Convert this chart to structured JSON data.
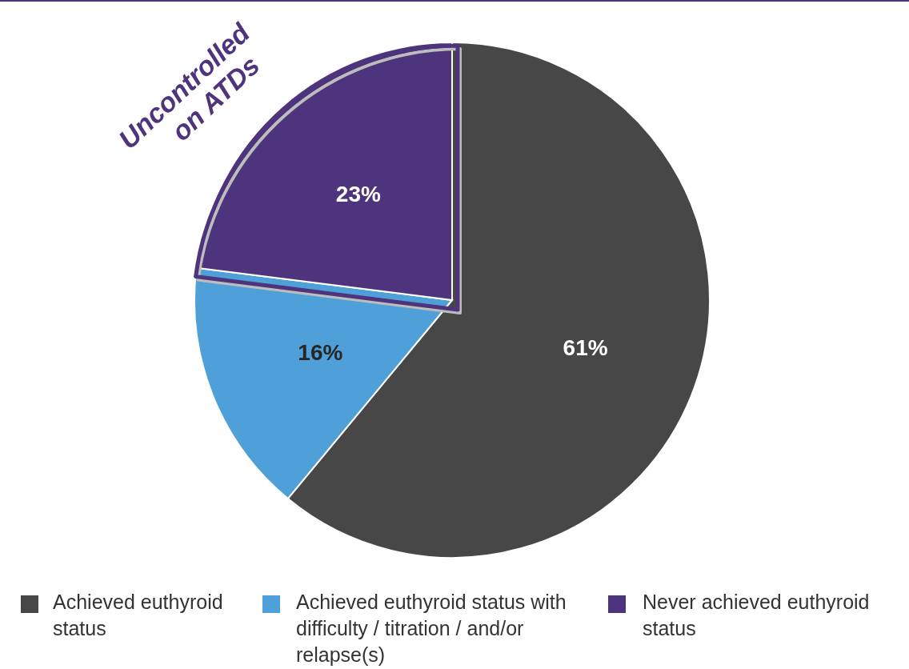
{
  "chart_data": {
    "type": "pie",
    "categories": [
      "Achieved euthyroid status",
      "Achieved euthyroid status with difficulty / titration / and/or relapse(s)",
      "Never achieved euthyroid status"
    ],
    "values": [
      61,
      16,
      23
    ],
    "colors": [
      "#474747",
      "#4fa0d8",
      "#4e347c"
    ],
    "value_labels": [
      "61%",
      "16%",
      "23%"
    ],
    "annotations": [
      {
        "text": "Uncontrolled\non ATDs",
        "x": "Never achieved euthyroid status"
      }
    ],
    "legend": "bottom"
  }
}
